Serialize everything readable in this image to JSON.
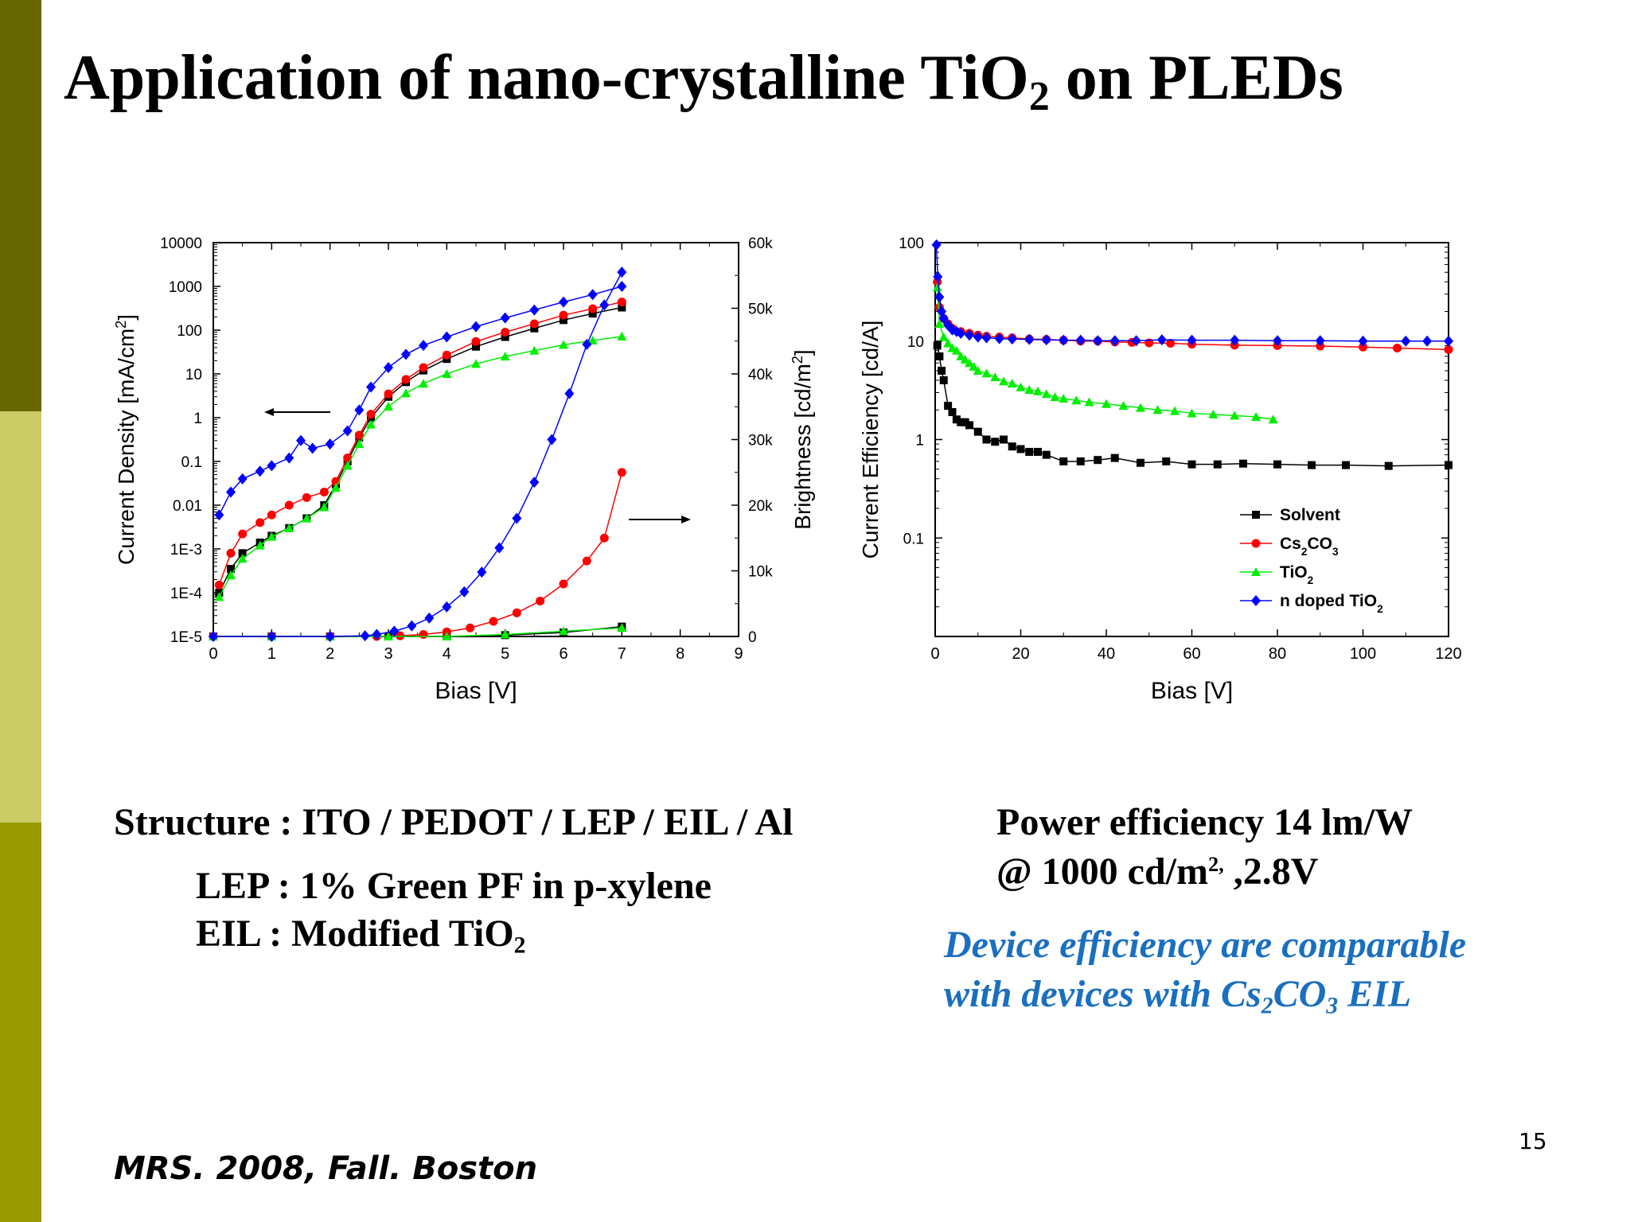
{
  "slide": {
    "title_pre": "Application of nano-crystalline TiO",
    "title_sub": "2",
    "title_post": " on PLEDs",
    "structure": "Structure : ITO / PEDOT / LEP / EIL / Al",
    "lep": "LEP : 1% Green PF in p-xylene",
    "eil_pre": "EIL  : Modified TiO",
    "eil_sub": "2",
    "power_line1": "Power efficiency 14 lm/W",
    "power_line2_pre": "@ 1000 cd/m",
    "power_line2_sup": "2,",
    "power_line2_post": " ,2.8V",
    "note_line1": "Device efficiency are comparable",
    "note_line2_pre": "with devices with Cs",
    "note_line2_sub1": "2",
    "note_line2_mid": "CO",
    "note_line2_sub2": "3",
    "note_line2_post": " EIL",
    "page_number": "15",
    "citation": "MRS. 2008, Fall. Boston",
    "colors": {
      "bar_dark": "#666600",
      "bar_light": "#cccc66",
      "bar_mid": "#999900",
      "note_blue": "#1a6fbf",
      "solvent": "#000000",
      "cs2co3": "#ff0000",
      "tio2": "#00ee00",
      "n_doped_tio2": "#0000ff"
    }
  },
  "chart_data": [
    {
      "type": "scatter",
      "xlabel": "Bias [V]",
      "ylabel_left": "Current Density [mA/cm",
      "ylabel_left_sup": "2",
      "ylabel_left_close": "]",
      "ylabel_right": "Brightness [cd/m",
      "ylabel_right_sup": "2",
      "ylabel_right_close": "]",
      "x_ticks": [
        "0",
        "1",
        "2",
        "3",
        "4",
        "5",
        "6",
        "7",
        "8",
        "9"
      ],
      "y_left_ticks": [
        "10000",
        "1000",
        "100",
        "10",
        "1",
        "0.1",
        "0.01",
        "1E-3",
        "1E-4",
        "1E-5"
      ],
      "y_right_ticks": [
        "60k",
        "50k",
        "40k",
        "30k",
        "20k",
        "10k",
        "0"
      ],
      "xlim": [
        0,
        9
      ],
      "ylim_left_log10": [
        -5,
        4
      ],
      "ylim_right": [
        0,
        60000
      ],
      "arrows": [
        "left arrow points to current density curves",
        "right arrow points to brightness curves"
      ],
      "series": [
        {
          "key": "solvent",
          "axis": "left",
          "marker": "square",
          "x": [
            0.1,
            0.3,
            0.5,
            0.8,
            1.0,
            1.3,
            1.6,
            1.9,
            2.1,
            2.3,
            2.5,
            2.7,
            3.0,
            3.3,
            3.6,
            4.0,
            4.5,
            5.0,
            5.5,
            6.0,
            6.5,
            7.0
          ],
          "y": [
            0.0001,
            0.00035,
            0.0008,
            0.0014,
            0.002,
            0.003,
            0.005,
            0.01,
            0.03,
            0.1,
            0.35,
            1,
            3,
            6.5,
            12,
            22,
            42,
            70,
            110,
            170,
            240,
            330
          ]
        },
        {
          "key": "cs2co3",
          "axis": "left",
          "marker": "circle",
          "x": [
            0.1,
            0.3,
            0.5,
            0.8,
            1.0,
            1.3,
            1.6,
            1.9,
            2.1,
            2.3,
            2.5,
            2.7,
            3.0,
            3.3,
            3.6,
            4.0,
            4.5,
            5.0,
            5.5,
            6.0,
            6.5,
            7.0
          ],
          "y": [
            0.00015,
            0.0008,
            0.0022,
            0.004,
            0.006,
            0.01,
            0.015,
            0.02,
            0.035,
            0.12,
            0.4,
            1.2,
            3.5,
            7.5,
            14,
            27,
            55,
            90,
            140,
            220,
            310,
            440
          ]
        },
        {
          "key": "tio2",
          "axis": "left",
          "marker": "triangle",
          "x": [
            0.1,
            0.3,
            0.5,
            0.8,
            1.0,
            1.3,
            1.6,
            1.9,
            2.1,
            2.3,
            2.5,
            2.7,
            3.0,
            3.3,
            3.6,
            4.0,
            4.5,
            5.0,
            5.5,
            6.0,
            6.5,
            7.0
          ],
          "y": [
            8e-05,
            0.00025,
            0.0006,
            0.0012,
            0.0019,
            0.003,
            0.005,
            0.009,
            0.025,
            0.08,
            0.25,
            0.7,
            1.8,
            3.6,
            6,
            10,
            17,
            25,
            34,
            46,
            58,
            72
          ]
        },
        {
          "key": "n_doped_tio2",
          "axis": "left",
          "marker": "diamond",
          "x": [
            0.1,
            0.3,
            0.5,
            0.8,
            1.0,
            1.3,
            1.5,
            1.7,
            2.0,
            2.3,
            2.5,
            2.7,
            3.0,
            3.3,
            3.6,
            4.0,
            4.5,
            5.0,
            5.5,
            6.0,
            6.5,
            7.0
          ],
          "y": [
            0.006,
            0.02,
            0.04,
            0.06,
            0.08,
            0.12,
            0.3,
            0.2,
            0.25,
            0.5,
            1.5,
            5,
            14,
            28,
            45,
            70,
            120,
            190,
            290,
            440,
            650,
            1000
          ]
        },
        {
          "key": "solvent",
          "axis": "right",
          "marker": "square",
          "x": [
            0,
            1,
            2,
            3,
            4,
            5,
            6,
            7
          ],
          "y": [
            0,
            0,
            0,
            0,
            0,
            200,
            600,
            1500
          ]
        },
        {
          "key": "cs2co3",
          "axis": "right",
          "marker": "circle",
          "x": [
            0,
            1,
            2,
            2.8,
            3.2,
            3.6,
            4.0,
            4.4,
            4.8,
            5.2,
            5.6,
            6.0,
            6.4,
            6.7,
            7.0
          ],
          "y": [
            0,
            0,
            0,
            0,
            100,
            300,
            700,
            1300,
            2300,
            3600,
            5400,
            8000,
            11500,
            15000,
            25000
          ]
        },
        {
          "key": "tio2",
          "axis": "right",
          "marker": "triangle",
          "x": [
            0,
            1,
            2,
            3,
            4,
            5,
            6,
            7
          ],
          "y": [
            0,
            0,
            0,
            0,
            0,
            300,
            800,
            1300
          ]
        },
        {
          "key": "n_doped_tio2",
          "axis": "right",
          "marker": "diamond",
          "x": [
            0,
            1,
            2,
            2.6,
            2.8,
            3.1,
            3.4,
            3.7,
            4.0,
            4.3,
            4.6,
            4.9,
            5.2,
            5.5,
            5.8,
            6.1,
            6.4,
            6.7,
            7.0
          ],
          "y": [
            0,
            0,
            0,
            100,
            300,
            800,
            1600,
            2800,
            4500,
            6800,
            9800,
            13500,
            18000,
            23500,
            30000,
            37000,
            44500,
            50500,
            55500
          ]
        }
      ]
    },
    {
      "type": "scatter",
      "xlabel": "Bias [V]",
      "ylabel": "Current Efficiency [cd/A]",
      "x_ticks": [
        "0",
        "20",
        "40",
        "60",
        "80",
        "100",
        "120"
      ],
      "y_ticks": [
        "100",
        "10",
        "1",
        "0.1"
      ],
      "xlim": [
        0,
        120
      ],
      "ylim_log10": [
        -2,
        2
      ],
      "legend_position": "lower-right",
      "legend": [
        {
          "key": "solvent",
          "pre": "Solvent",
          "sub1": "",
          "mid": "",
          "sub2": ""
        },
        {
          "key": "cs2co3",
          "pre": "Cs",
          "sub1": "2",
          "mid": "CO",
          "sub2": "3"
        },
        {
          "key": "tio2",
          "pre": "TiO",
          "sub1": "2",
          "mid": "",
          "sub2": ""
        },
        {
          "key": "n_doped_tio2",
          "pre": "n doped TiO",
          "sub1": "2",
          "mid": "",
          "sub2": ""
        }
      ],
      "series": [
        {
          "key": "solvent",
          "marker": "square",
          "x": [
            0.5,
            1,
            1.5,
            2,
            3,
            4,
            5,
            6,
            7,
            8,
            10,
            12,
            14,
            16,
            18,
            20,
            22,
            24,
            26,
            30,
            34,
            38,
            42,
            48,
            54,
            60,
            66,
            72,
            80,
            88,
            96,
            106,
            120
          ],
          "y": [
            9,
            7,
            5,
            4,
            2.2,
            1.9,
            1.6,
            1.5,
            1.5,
            1.4,
            1.2,
            1.0,
            0.95,
            1.0,
            0.85,
            0.8,
            0.75,
            0.75,
            0.7,
            0.6,
            0.6,
            0.62,
            0.65,
            0.58,
            0.6,
            0.56,
            0.56,
            0.57,
            0.56,
            0.55,
            0.55,
            0.54,
            0.55
          ]
        },
        {
          "key": "cs2co3",
          "marker": "circle",
          "x": [
            0.5,
            1,
            2,
            3,
            4,
            6,
            8,
            10,
            12,
            15,
            18,
            22,
            26,
            30,
            34,
            38,
            42,
            46,
            50,
            55,
            60,
            70,
            80,
            90,
            100,
            108,
            120
          ],
          "y": [
            40,
            22,
            17,
            15,
            13.5,
            12.5,
            12,
            11.5,
            11.2,
            11,
            10.8,
            10.5,
            10.4,
            10.2,
            10,
            10,
            9.8,
            9.7,
            9.6,
            9.5,
            9.3,
            9.1,
            9.0,
            8.9,
            8.7,
            8.5,
            8.2
          ]
        },
        {
          "key": "tio2",
          "marker": "triangle",
          "x": [
            0.5,
            1,
            2,
            3,
            4,
            5,
            6,
            7,
            8,
            9,
            10,
            12,
            14,
            16,
            18,
            20,
            22,
            24,
            26,
            28,
            30,
            33,
            36,
            40,
            44,
            48,
            52,
            56,
            60,
            65,
            70,
            75,
            79
          ],
          "y": [
            35,
            15,
            11,
            9.5,
            8.5,
            8,
            7,
            6.5,
            6,
            5.5,
            5,
            4.7,
            4.3,
            3.9,
            3.7,
            3.4,
            3.2,
            3.1,
            2.9,
            2.7,
            2.6,
            2.5,
            2.4,
            2.3,
            2.2,
            2.1,
            2.0,
            1.95,
            1.85,
            1.8,
            1.75,
            1.7,
            1.6
          ]
        },
        {
          "key": "n_doped_tio2",
          "marker": "diamond",
          "x": [
            0.3,
            0.6,
            1,
            1.5,
            2,
            3,
            4,
            5,
            6,
            8,
            10,
            12,
            15,
            18,
            22,
            26,
            30,
            34,
            38,
            42,
            47,
            53,
            60,
            70,
            80,
            90,
            100,
            110,
            115,
            120
          ],
          "y": [
            95,
            45,
            28,
            20,
            17,
            14.5,
            13,
            12.5,
            12,
            11.5,
            11,
            10.8,
            10.6,
            10.5,
            10.4,
            10.3,
            10.2,
            10.2,
            10.1,
            10.1,
            10.1,
            10.3,
            10.2,
            10.2,
            10.1,
            10.1,
            10.0,
            10.0,
            10.0,
            10.0
          ]
        }
      ]
    }
  ]
}
